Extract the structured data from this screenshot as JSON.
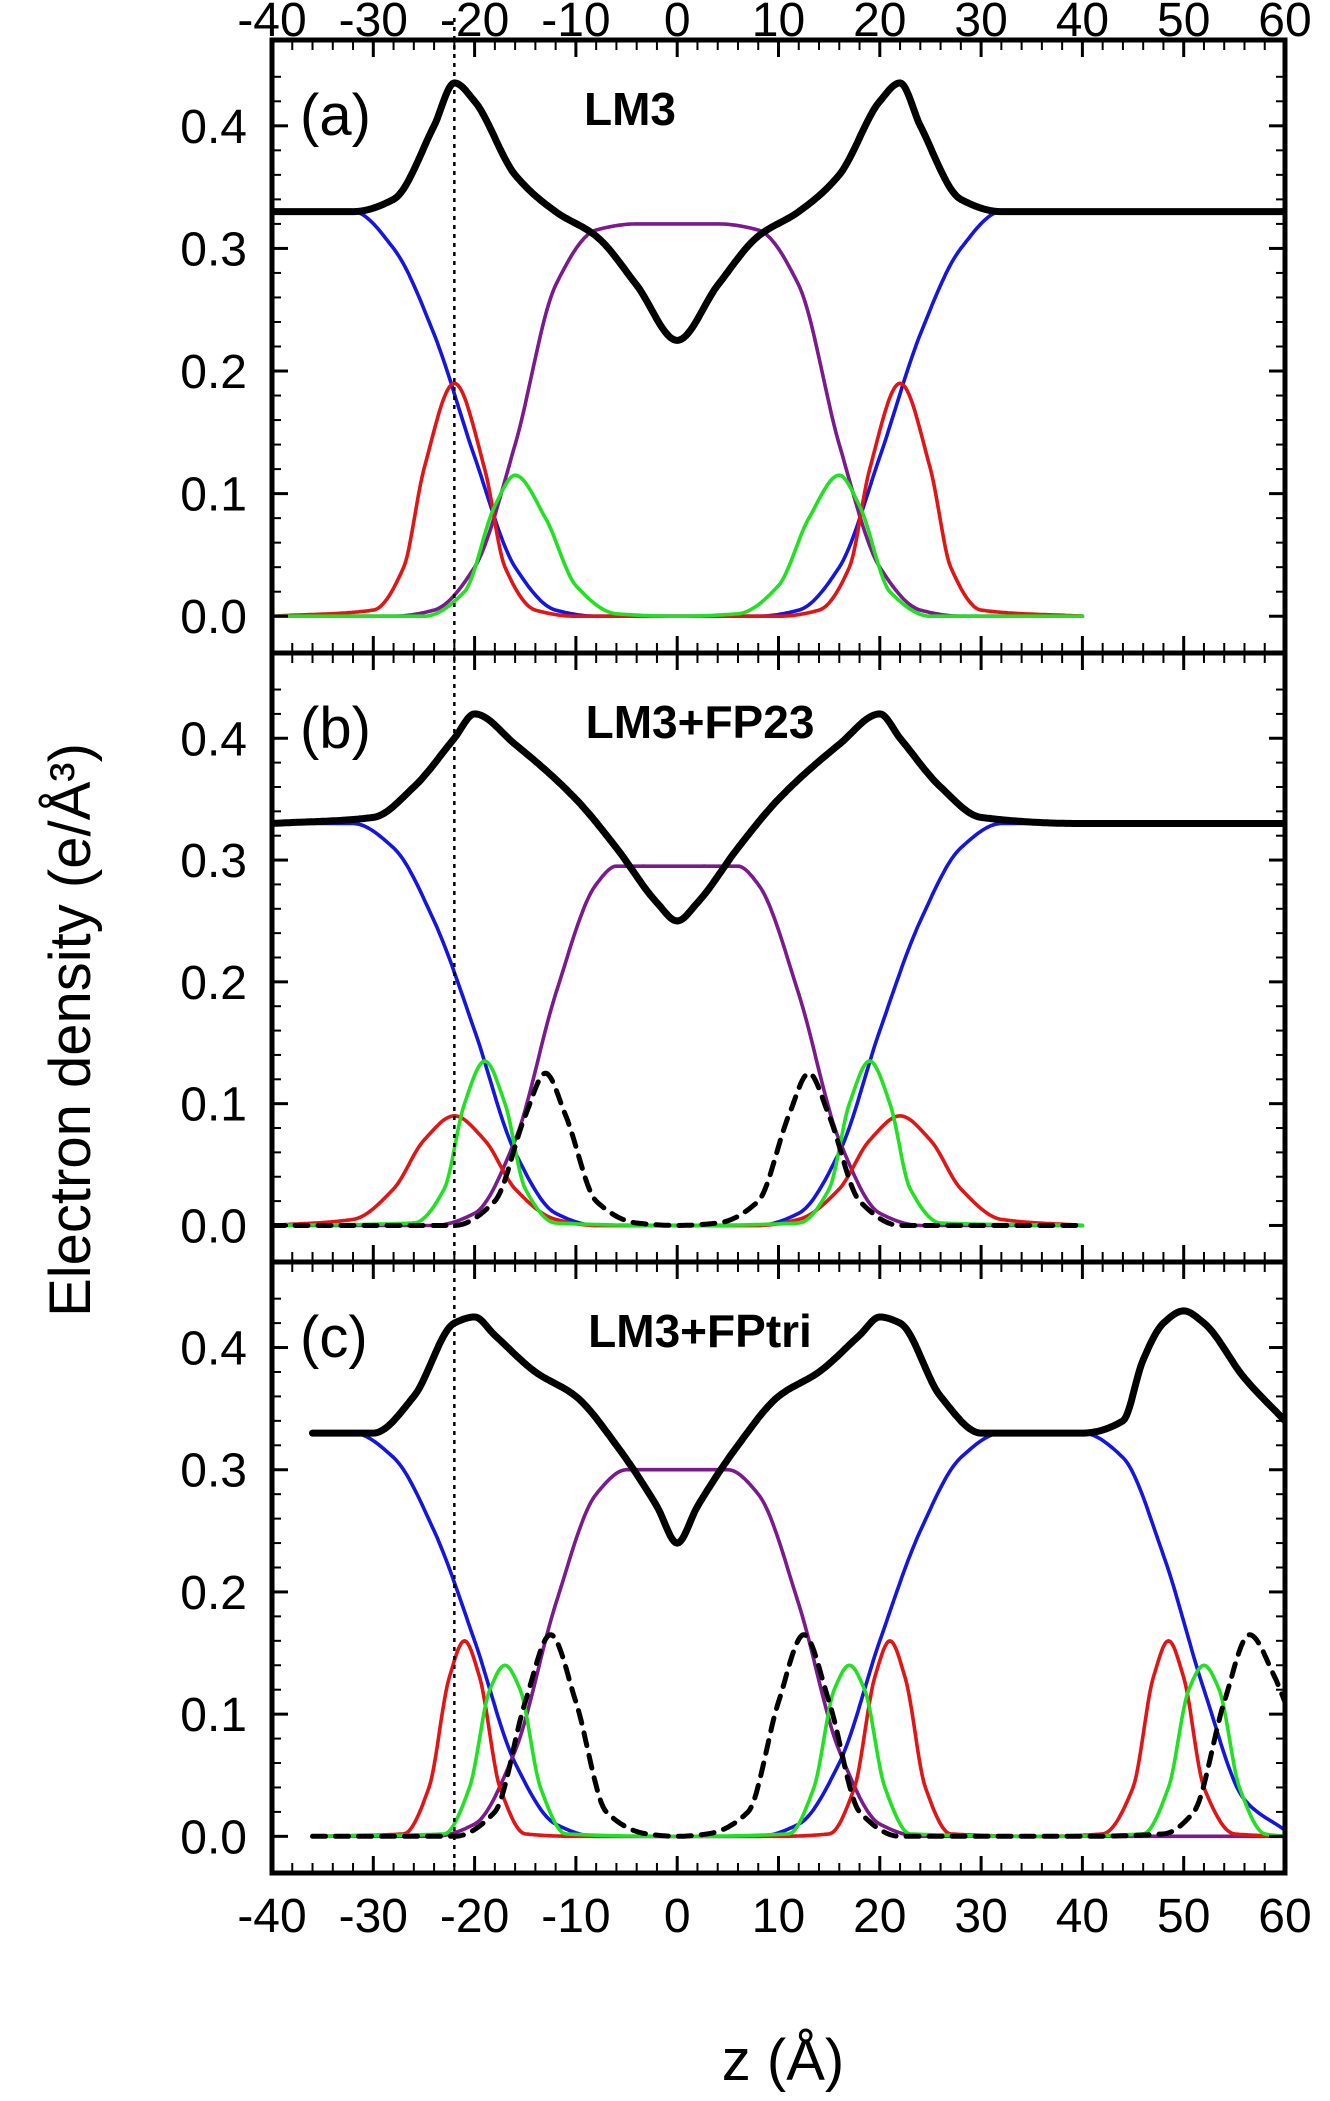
{
  "chart_data": {
    "type": "line",
    "xlabel": "z (Å)",
    "ylabel": "Electron density (e/Å³)",
    "xlim": [
      -40,
      60
    ],
    "ylim": [
      -0.03,
      0.47
    ],
    "x_ticks": [
      -40,
      -30,
      -20,
      -10,
      0,
      10,
      20,
      30,
      40,
      50,
      60
    ],
    "x_tick_labels": [
      "-40",
      "-30",
      "-20",
      "-10",
      "0",
      "10",
      "20",
      "30",
      "40",
      "50",
      "60"
    ],
    "y_ticks": [
      0.0,
      0.1,
      0.2,
      0.3,
      0.4
    ],
    "y_tick_labels": [
      "0.0",
      "0.1",
      "0.2",
      "0.3",
      "0.4"
    ],
    "reference_line_x": -22,
    "series_colors": {
      "total": "#000000",
      "blue": "#1515e0",
      "purple": "#7a1a8c",
      "red": "#e01515",
      "green": "#22e022",
      "dashed": "#000000"
    },
    "panels": [
      {
        "letter": "(a)",
        "name": "LM3",
        "series": [
          {
            "color": "total",
            "style": "solid",
            "width": "thick",
            "x": [
              -40,
              -32,
              -28,
              -24,
              -22,
              -20,
              -16,
              -12,
              -8,
              -4,
              0,
              4,
              8,
              12,
              16,
              20,
              22,
              24,
              28,
              32,
              40,
              60
            ],
            "y": [
              0.33,
              0.33,
              0.34,
              0.4,
              0.435,
              0.42,
              0.36,
              0.33,
              0.31,
              0.27,
              0.225,
              0.27,
              0.31,
              0.33,
              0.36,
              0.42,
              0.435,
              0.4,
              0.34,
              0.33,
              0.33,
              0.33
            ]
          },
          {
            "color": "blue",
            "style": "solid",
            "width": "thin",
            "x": [
              -40,
              -32,
              -28,
              -24,
              -20,
              -16,
              -12,
              -8,
              0,
              8,
              12,
              16,
              20,
              24,
              28,
              32,
              40
            ],
            "y": [
              0.33,
              0.33,
              0.3,
              0.23,
              0.13,
              0.04,
              0.005,
              0,
              0,
              0,
              0.005,
              0.04,
              0.13,
              0.23,
              0.3,
              0.33,
              0.33
            ]
          },
          {
            "color": "purple",
            "style": "solid",
            "width": "thin",
            "x": [
              -40,
              -28,
              -24,
              -20,
              -16,
              -12,
              -8,
              -4,
              0,
              4,
              8,
              12,
              16,
              20,
              24,
              28,
              40
            ],
            "y": [
              0,
              0,
              0.005,
              0.04,
              0.14,
              0.27,
              0.315,
              0.32,
              0.32,
              0.32,
              0.315,
              0.27,
              0.14,
              0.04,
              0.005,
              0,
              0
            ]
          },
          {
            "color": "red",
            "style": "solid",
            "width": "thin",
            "x": [
              -40,
              -30,
              -27,
              -25,
              -22,
              -19,
              -17,
              -14,
              -10,
              0,
              10,
              14,
              17,
              19,
              22,
              25,
              27,
              30,
              40
            ],
            "y": [
              0,
              0.005,
              0.04,
              0.12,
              0.19,
              0.12,
              0.04,
              0.005,
              0,
              0,
              0,
              0.005,
              0.04,
              0.12,
              0.19,
              0.12,
              0.04,
              0.005,
              0
            ]
          },
          {
            "color": "green",
            "style": "solid",
            "width": "thin",
            "x": [
              -40,
              -25,
              -21,
              -18,
              -16,
              -13,
              -10,
              -6,
              0,
              6,
              10,
              13,
              16,
              18,
              21,
              25,
              40
            ],
            "y": [
              0,
              0,
              0.02,
              0.09,
              0.115,
              0.08,
              0.025,
              0.002,
              0,
              0.002,
              0.025,
              0.08,
              0.115,
              0.09,
              0.02,
              0,
              0
            ]
          }
        ]
      },
      {
        "letter": "(b)",
        "name": "LM3+FP23",
        "series": [
          {
            "color": "total",
            "style": "solid",
            "width": "thick",
            "x": [
              -40,
              -30,
              -26,
              -22,
              -20,
              -16,
              -10,
              -6,
              -2,
              0,
              2,
              6,
              10,
              16,
              20,
              22,
              26,
              30,
              40,
              60
            ],
            "y": [
              0.33,
              0.335,
              0.36,
              0.4,
              0.42,
              0.395,
              0.35,
              0.31,
              0.265,
              0.25,
              0.265,
              0.31,
              0.35,
              0.395,
              0.42,
              0.4,
              0.36,
              0.335,
              0.33,
              0.33
            ]
          },
          {
            "color": "blue",
            "style": "solid",
            "width": "thin",
            "x": [
              -40,
              -32,
              -28,
              -24,
              -20,
              -16,
              -12,
              -8,
              0,
              8,
              12,
              16,
              20,
              24,
              28,
              32,
              40
            ],
            "y": [
              0.33,
              0.33,
              0.31,
              0.25,
              0.16,
              0.06,
              0.01,
              0,
              0,
              0,
              0.01,
              0.06,
              0.16,
              0.25,
              0.31,
              0.33,
              0.33
            ]
          },
          {
            "color": "purple",
            "style": "solid",
            "width": "thin",
            "x": [
              -40,
              -24,
              -20,
              -16,
              -12,
              -8,
              -6,
              0,
              6,
              8,
              12,
              16,
              20,
              24,
              40
            ],
            "y": [
              0,
              0,
              0.01,
              0.07,
              0.19,
              0.28,
              0.295,
              0.295,
              0.295,
              0.28,
              0.19,
              0.07,
              0.01,
              0,
              0
            ]
          },
          {
            "color": "red",
            "style": "solid",
            "width": "thin",
            "x": [
              -40,
              -32,
              -28,
              -25,
              -22,
              -19,
              -16,
              -12,
              -8,
              0,
              8,
              12,
              16,
              19,
              22,
              25,
              28,
              32,
              40
            ],
            "y": [
              0,
              0.005,
              0.03,
              0.07,
              0.09,
              0.07,
              0.03,
              0.005,
              0,
              0,
              0,
              0.005,
              0.03,
              0.07,
              0.09,
              0.07,
              0.03,
              0.005,
              0
            ]
          },
          {
            "color": "green",
            "style": "solid",
            "width": "thin",
            "x": [
              -40,
              -26,
              -23,
              -21,
              -19,
              -17,
              -15,
              -12,
              0,
              12,
              15,
              17,
              19,
              21,
              23,
              26,
              40
            ],
            "y": [
              0,
              0.002,
              0.03,
              0.1,
              0.135,
              0.1,
              0.03,
              0.002,
              0,
              0.002,
              0.03,
              0.1,
              0.135,
              0.1,
              0.03,
              0.002,
              0
            ]
          },
          {
            "color": "dashed",
            "style": "dashed",
            "width": "medium",
            "x": [
              -40,
              -22,
              -18,
              -15,
              -13,
              -11,
              -8,
              -4,
              0,
              4,
              8,
              11,
              13,
              15,
              18,
              22,
              40
            ],
            "y": [
              0,
              0,
              0.02,
              0.09,
              0.125,
              0.09,
              0.02,
              0.002,
              0,
              0.002,
              0.02,
              0.09,
              0.125,
              0.09,
              0.02,
              0,
              0
            ]
          }
        ]
      },
      {
        "letter": "(c)",
        "name": "LM3+FPtri",
        "series": [
          {
            "color": "total",
            "style": "solid",
            "width": "thick",
            "x": [
              -36,
              -30,
              -26,
              -22,
              -20,
              -18,
              -14,
              -10,
              -6,
              -2,
              0,
              2,
              6,
              10,
              14,
              18,
              20,
              22,
              26,
              30,
              40,
              44,
              46,
              48,
              50,
              52,
              56,
              60
            ],
            "y": [
              0.33,
              0.33,
              0.36,
              0.42,
              0.425,
              0.41,
              0.38,
              0.36,
              0.32,
              0.27,
              0.24,
              0.27,
              0.32,
              0.36,
              0.38,
              0.41,
              0.425,
              0.42,
              0.36,
              0.33,
              0.33,
              0.34,
              0.39,
              0.42,
              0.43,
              0.42,
              0.375,
              0.34
            ]
          },
          {
            "color": "blue",
            "style": "solid",
            "width": "thin",
            "x": [
              -36,
              -32,
              -28,
              -24,
              -20,
              -16,
              -12,
              -8,
              0,
              8,
              12,
              16,
              20,
              24,
              28,
              32,
              40,
              44,
              48,
              52,
              56,
              60
            ],
            "y": [
              0.33,
              0.33,
              0.31,
              0.25,
              0.16,
              0.06,
              0.01,
              0,
              0,
              0,
              0.01,
              0.06,
              0.16,
              0.25,
              0.31,
              0.33,
              0.33,
              0.31,
              0.23,
              0.12,
              0.03,
              0.005
            ]
          },
          {
            "color": "purple",
            "style": "solid",
            "width": "thin",
            "x": [
              -36,
              -24,
              -20,
              -16,
              -12,
              -8,
              -5,
              0,
              5,
              8,
              12,
              16,
              20,
              24,
              40,
              60
            ],
            "y": [
              0,
              0,
              0.01,
              0.07,
              0.19,
              0.28,
              0.3,
              0.3,
              0.3,
              0.28,
              0.19,
              0.07,
              0.01,
              0,
              0,
              0
            ]
          },
          {
            "color": "red",
            "style": "solid",
            "width": "thin",
            "x": [
              -36,
              -27,
              -24.5,
              -22.5,
              -21,
              -19.5,
              -17.5,
              -15,
              -10,
              0,
              10,
              15,
              17.5,
              19.5,
              21,
              22.5,
              24.5,
              27,
              36,
              42,
              45,
              47,
              48.5,
              50,
              52,
              55,
              60
            ],
            "y": [
              0,
              0.002,
              0.04,
              0.13,
              0.16,
              0.13,
              0.04,
              0.002,
              0,
              0,
              0,
              0.002,
              0.04,
              0.13,
              0.16,
              0.13,
              0.04,
              0.002,
              0,
              0.002,
              0.04,
              0.13,
              0.16,
              0.13,
              0.04,
              0.002,
              0
            ]
          },
          {
            "color": "green",
            "style": "solid",
            "width": "thin",
            "x": [
              -36,
              -23,
              -20.5,
              -18.5,
              -17,
              -15.5,
              -13.5,
              -11,
              0,
              11,
              13.5,
              15.5,
              17,
              18.5,
              20.5,
              23,
              36,
              46,
              48.5,
              50.5,
              52,
              53.5,
              55.5,
              58,
              60
            ],
            "y": [
              0,
              0.002,
              0.04,
              0.12,
              0.14,
              0.12,
              0.04,
              0.002,
              0,
              0.002,
              0.04,
              0.12,
              0.14,
              0.12,
              0.04,
              0.002,
              0,
              0.002,
              0.04,
              0.12,
              0.14,
              0.12,
              0.04,
              0.002,
              0
            ]
          },
          {
            "color": "dashed",
            "style": "dashed",
            "width": "medium",
            "x": [
              -36,
              -22,
              -18,
              -15,
              -12.5,
              -10,
              -7,
              -3,
              0,
              3,
              7,
              10,
              12.5,
              15,
              18,
              22,
              40,
              48,
              51,
              54,
              56.5,
              59,
              60
            ],
            "y": [
              0,
              0,
              0.02,
              0.11,
              0.165,
              0.11,
              0.02,
              0.002,
              0,
              0.002,
              0.02,
              0.11,
              0.165,
              0.11,
              0.02,
              0,
              0,
              0.002,
              0.02,
              0.11,
              0.165,
              0.13,
              0.11
            ]
          }
        ]
      }
    ]
  }
}
